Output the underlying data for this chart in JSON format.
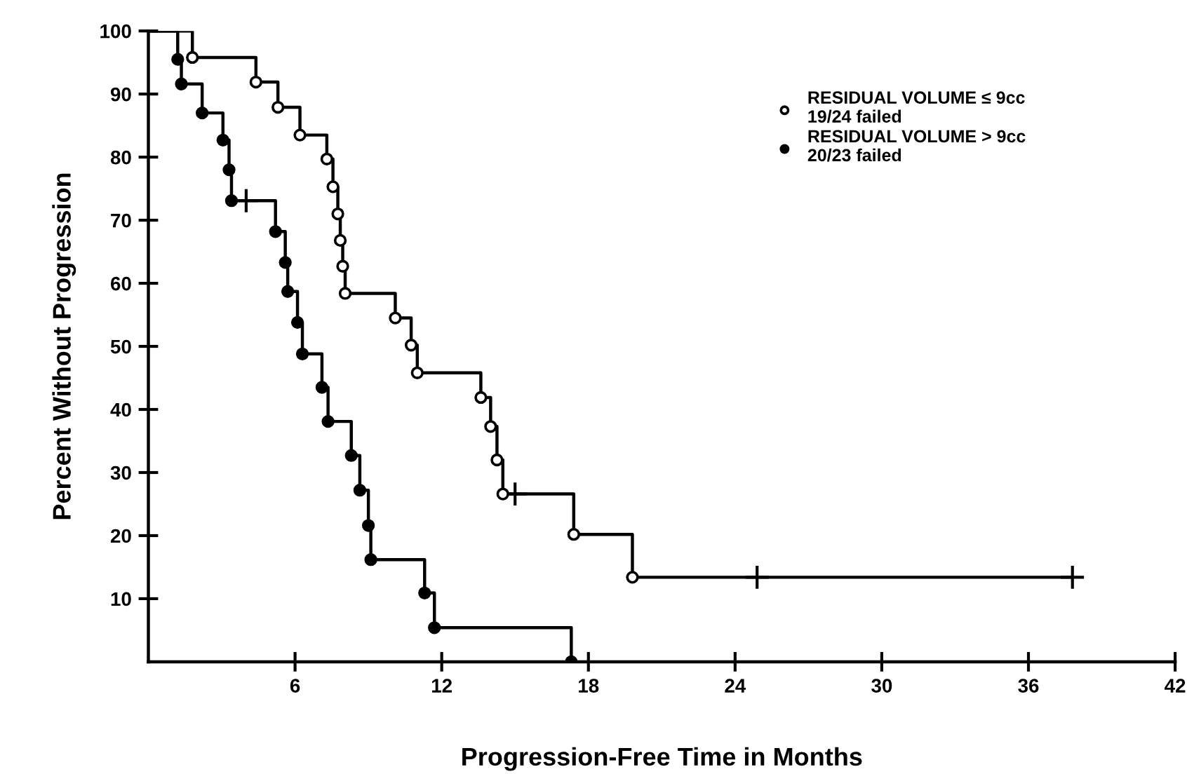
{
  "chart_data": {
    "type": "step",
    "xlabel": "Progression-Free Time in Months",
    "ylabel": "Percent Without Progression",
    "xlim": [
      0,
      42
    ],
    "ylim": [
      0,
      100
    ],
    "xticks": [
      6,
      12,
      18,
      24,
      30,
      36,
      42
    ],
    "yticks": [
      10,
      20,
      30,
      40,
      50,
      60,
      70,
      80,
      90,
      100
    ],
    "grid": false,
    "legend": "top right",
    "series": [
      {
        "color": "#000000",
        "marker": "none",
        "x": [
          0,
          1.8,
          4.4,
          5.3,
          6.2,
          7.3,
          7.55,
          7.75,
          7.85,
          7.95,
          8.05,
          10.1,
          10.75,
          11.0,
          13.6,
          14.0,
          14.26,
          14.5,
          17.4,
          19.8,
          37.8
        ],
        "values": [
          100,
          95.8,
          91.9,
          87.9,
          83.5,
          79.7,
          75.3,
          71.0,
          66.8,
          62.7,
          58.4,
          54.5,
          50.2,
          45.8,
          41.9,
          37.3,
          32.0,
          26.6,
          20.2,
          13.4,
          13.4
        ]
      },
      {
        "type": "scatter",
        "name": "RESIDUAL VOLUME ≤ 9cc\n19/24 failed",
        "color": "#ffffff",
        "marker": "circle",
        "x": [
          1.8,
          4.4,
          5.3,
          6.2,
          7.3,
          7.55,
          7.75,
          7.85,
          7.95,
          8.05,
          10.1,
          10.75,
          11.0,
          13.6,
          14.0,
          14.26,
          14.5,
          17.4,
          19.8
        ],
        "values": [
          95.8,
          91.9,
          87.9,
          83.5,
          79.7,
          75.3,
          71.0,
          66.8,
          62.7,
          58.4,
          54.5,
          50.2,
          45.8,
          41.9,
          37.3,
          32.0,
          26.6,
          20.2,
          13.4
        ]
      },
      {
        "type": "scatter",
        "color": "#000000",
        "marker": "cross",
        "x": [
          15.0,
          24.9,
          37.8
        ],
        "values": [
          26.6,
          13.4,
          13.4
        ]
      },
      {
        "color": "#000000",
        "marker": "none",
        "x": [
          0,
          1.2,
          1.35,
          2.2,
          3.05,
          3.3,
          3.4,
          5.2,
          5.6,
          5.7,
          6.1,
          6.3,
          7.1,
          7.35,
          8.3,
          8.65,
          9.0,
          9.1,
          11.3,
          11.7,
          17.3
        ],
        "values": [
          100,
          95.5,
          91.6,
          87.0,
          82.7,
          78.0,
          73.1,
          68.2,
          63.3,
          58.7,
          53.8,
          48.8,
          43.5,
          38.1,
          32.7,
          27.2,
          21.6,
          16.2,
          10.9,
          5.4,
          0
        ]
      },
      {
        "type": "scatter",
        "name": "RESIDUAL VOLUME > 9cc\n20/23 failed",
        "color": "#000000",
        "marker": "circle",
        "x": [
          1.2,
          1.35,
          2.2,
          3.05,
          3.3,
          3.4,
          5.2,
          5.6,
          5.7,
          6.1,
          6.3,
          7.1,
          7.35,
          8.3,
          8.65,
          9.0,
          9.1,
          11.3,
          11.7,
          17.3
        ],
        "values": [
          95.5,
          91.6,
          87.0,
          82.7,
          78.0,
          73.1,
          68.2,
          63.3,
          58.7,
          53.8,
          48.8,
          43.5,
          38.1,
          32.7,
          27.2,
          21.6,
          16.2,
          10.9,
          5.4,
          0
        ]
      },
      {
        "type": "scatter",
        "color": "#000000",
        "marker": "cross",
        "x": [
          4.0
        ],
        "values": [
          73.1
        ]
      }
    ]
  }
}
